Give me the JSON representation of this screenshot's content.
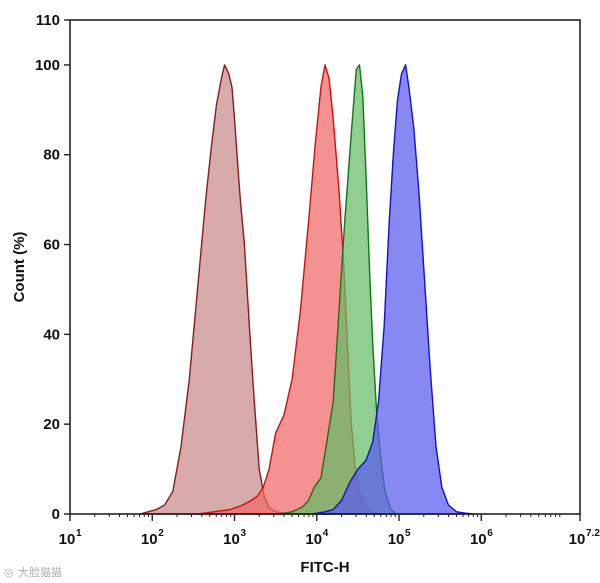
{
  "chart_data": {
    "type": "area",
    "title": "",
    "xlabel": "FITC-H",
    "ylabel": "Count  (%)",
    "xscale": "log",
    "xlim": [
      1,
      7.2
    ],
    "ylim": [
      0,
      110
    ],
    "grid": false,
    "legend": "none",
    "x_ticks": [
      {
        "base": "10",
        "exp": "1",
        "value": 1
      },
      {
        "base": "10",
        "exp": "2",
        "value": 2
      },
      {
        "base": "10",
        "exp": "3",
        "value": 3
      },
      {
        "base": "10",
        "exp": "4",
        "value": 4
      },
      {
        "base": "10",
        "exp": "5",
        "value": 5
      },
      {
        "base": "10",
        "exp": "6",
        "value": 6
      },
      {
        "base": "10",
        "exp": "7.2",
        "value": 7.2
      }
    ],
    "y_ticks": [
      "0",
      "20",
      "40",
      "60",
      "80",
      "100",
      "110"
    ],
    "series": [
      {
        "fill": "#c98b8b",
        "stroke": "#8b1a1a",
        "x": [
          1.85,
          1.95,
          2.05,
          2.15,
          2.25,
          2.35,
          2.45,
          2.55,
          2.65,
          2.72,
          2.78,
          2.84,
          2.88,
          2.93,
          2.97,
          3.0,
          3.03,
          3.07,
          3.12,
          3.18,
          3.24,
          3.3,
          3.36,
          3.42,
          3.5,
          3.6,
          3.7
        ],
        "y": [
          0,
          0.5,
          1,
          2,
          5,
          15,
          30,
          50,
          70,
          82,
          91,
          97,
          100,
          98,
          95,
          88,
          80,
          70,
          60,
          42,
          25,
          10,
          4,
          1.5,
          0.5,
          0.2,
          0
        ]
      },
      {
        "fill": "#f06666",
        "stroke": "#cc1111",
        "x": [
          2.55,
          2.75,
          2.95,
          3.1,
          3.2,
          3.28,
          3.35,
          3.42,
          3.5,
          3.6,
          3.7,
          3.8,
          3.9,
          3.98,
          4.05,
          4.1,
          4.15,
          4.2,
          4.27,
          4.33,
          4.38,
          4.42,
          4.47,
          4.52,
          4.57,
          4.62,
          4.7,
          4.8
        ],
        "y": [
          0,
          0.5,
          1,
          2,
          3,
          4,
          6,
          10,
          18,
          22,
          30,
          45,
          65,
          82,
          95,
          100,
          97,
          88,
          72,
          55,
          35,
          20,
          10,
          5,
          2,
          1,
          0.3,
          0
        ]
      },
      {
        "fill": "#66bb66",
        "stroke": "#117711",
        "x": [
          3.55,
          3.7,
          3.82,
          3.9,
          3.97,
          4.05,
          4.13,
          4.2,
          4.28,
          4.34,
          4.4,
          4.45,
          4.48,
          4.52,
          4.56,
          4.6,
          4.64,
          4.68,
          4.73,
          4.78,
          4.83,
          4.9,
          4.97
        ],
        "y": [
          0,
          0.5,
          1.5,
          3,
          6,
          8,
          17,
          25,
          48,
          65,
          80,
          92,
          99,
          100,
          93,
          75,
          55,
          38,
          22,
          12,
          5,
          1,
          0
        ]
      },
      {
        "fill": "#5a5aee",
        "stroke": "#1111cc",
        "x": [
          3.95,
          4.1,
          4.2,
          4.3,
          4.4,
          4.5,
          4.6,
          4.68,
          4.75,
          4.82,
          4.88,
          4.93,
          4.98,
          5.03,
          5.08,
          5.12,
          5.18,
          5.24,
          5.3,
          5.38,
          5.45,
          5.52,
          5.6,
          5.7,
          5.8,
          5.9
        ],
        "y": [
          0,
          0.5,
          1,
          3,
          7,
          10,
          12,
          16,
          25,
          42,
          65,
          80,
          92,
          98,
          100,
          95,
          86,
          72,
          55,
          32,
          15,
          6,
          2,
          0.5,
          0.2,
          0
        ]
      }
    ]
  },
  "watermark": {
    "icon": "paw-icon",
    "text": "大脸猫猫"
  }
}
